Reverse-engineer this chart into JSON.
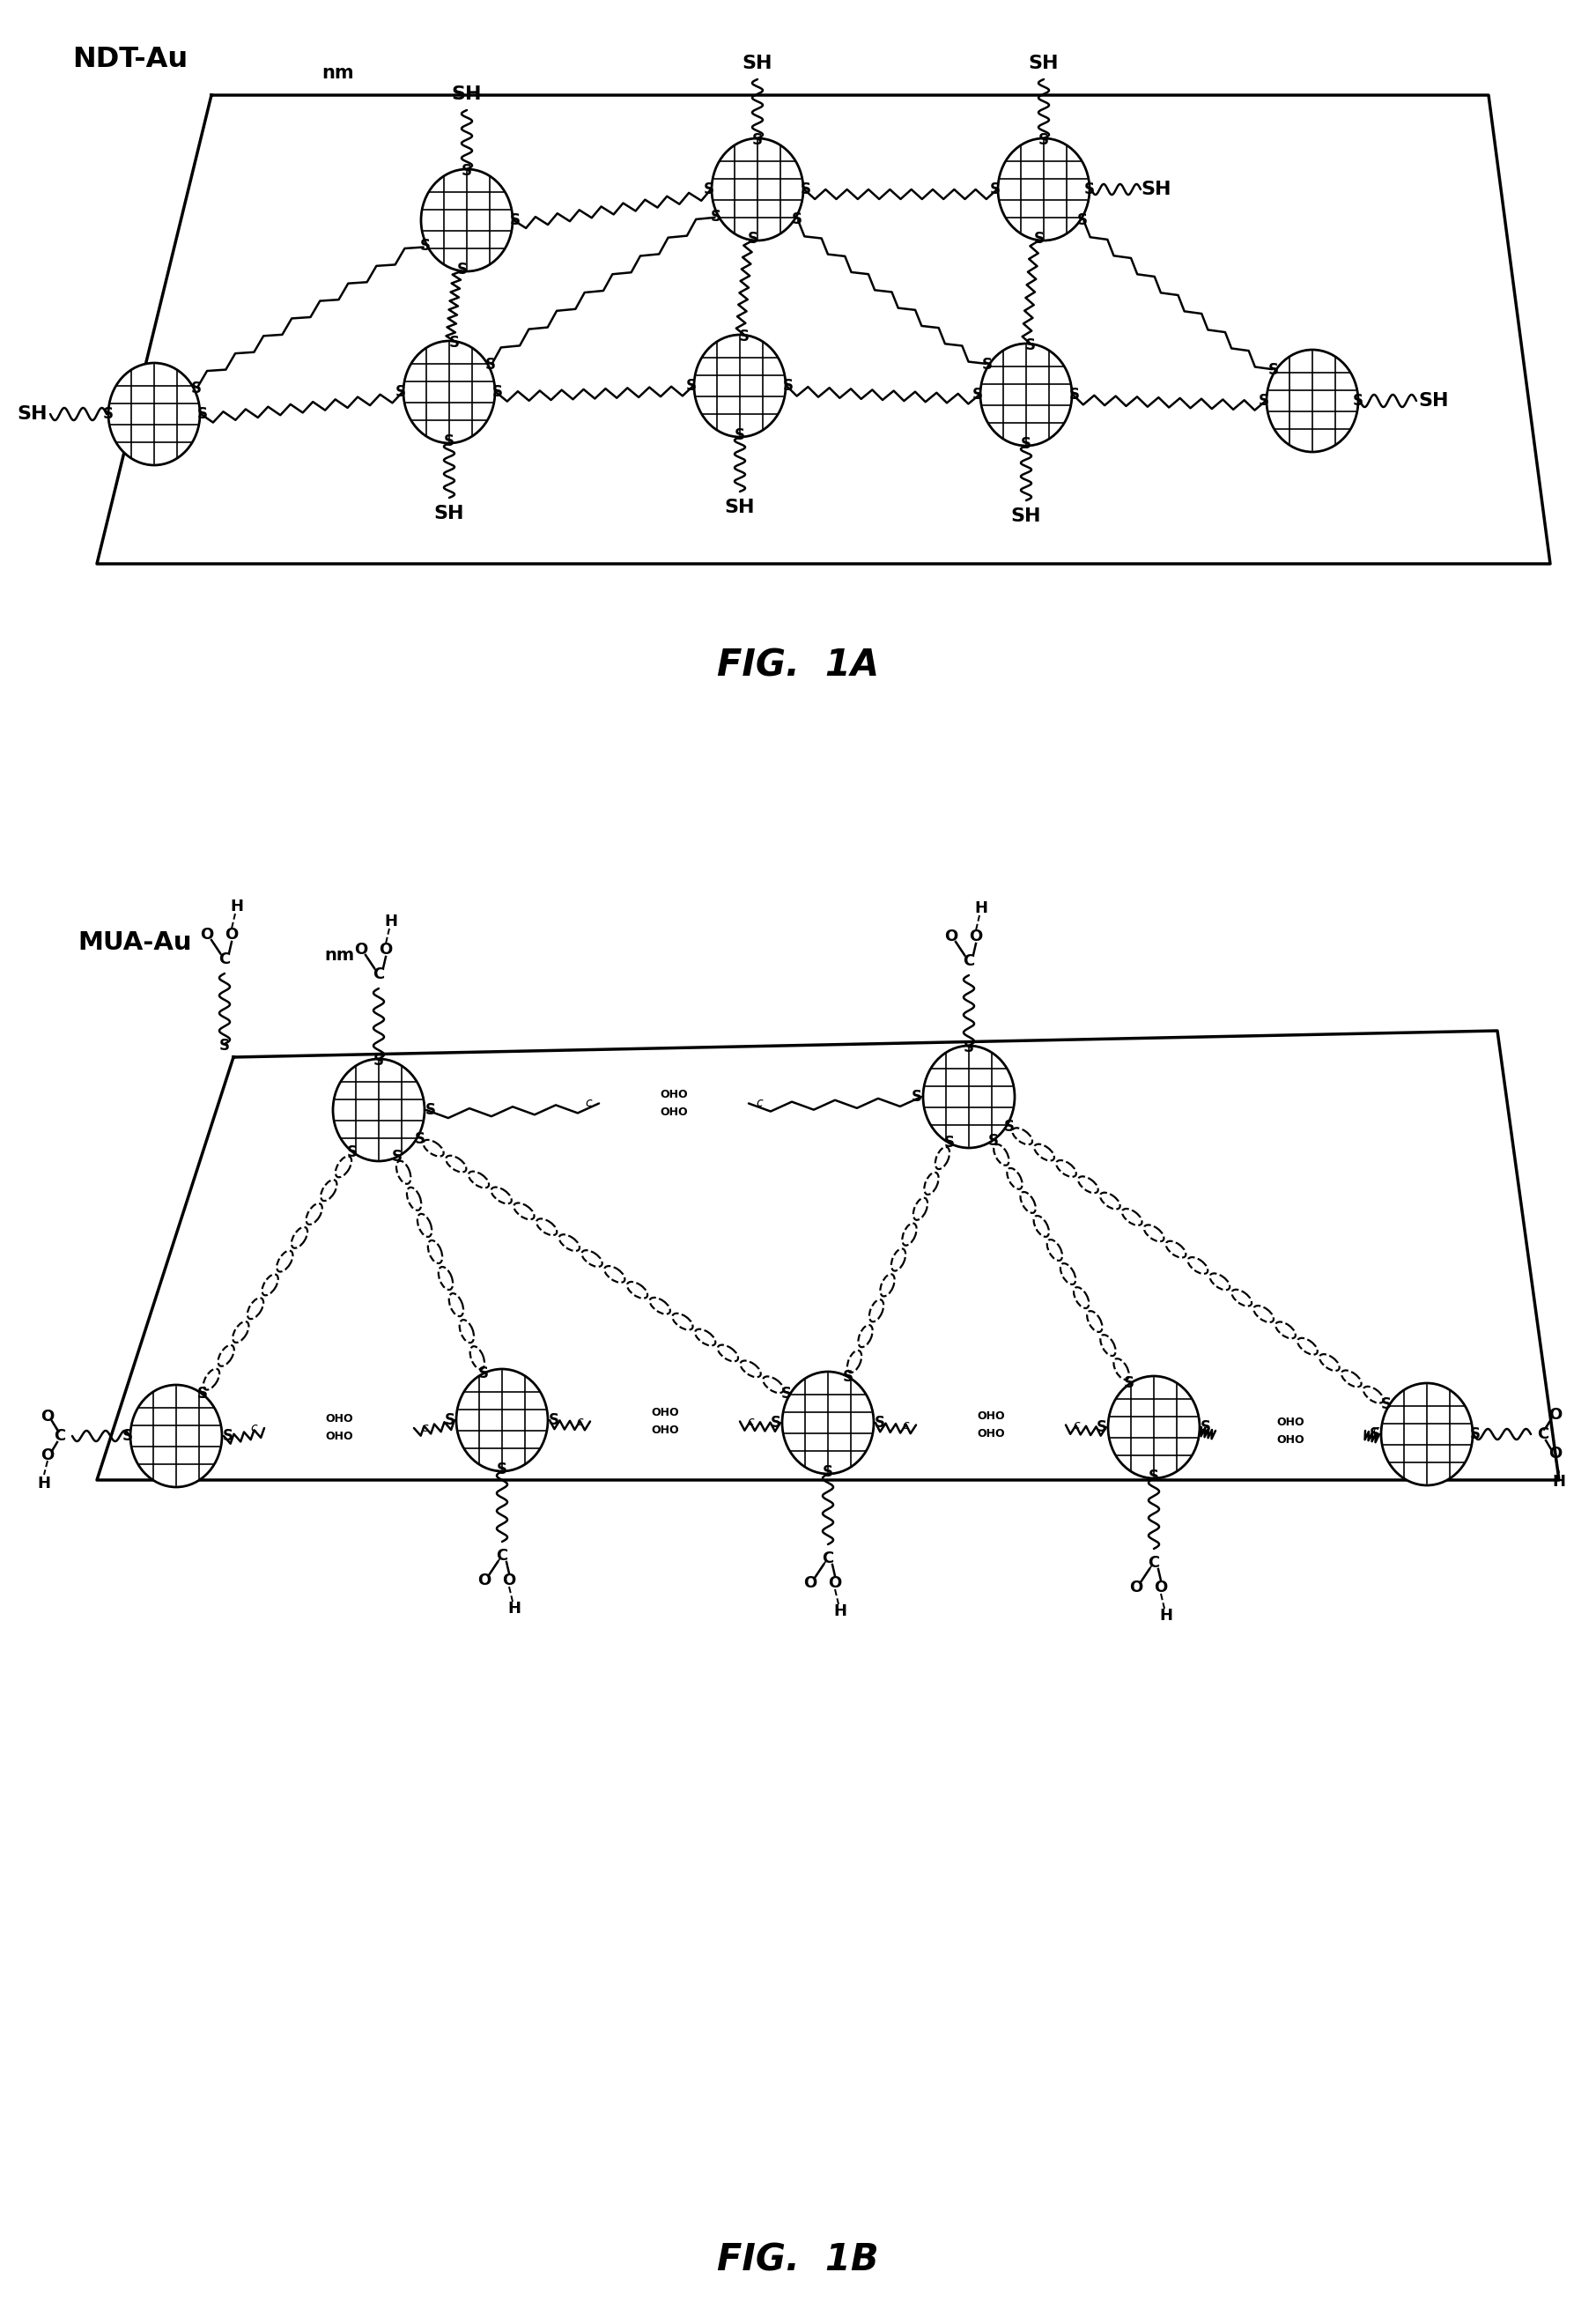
{
  "fig_width": 18.12,
  "fig_height": 26.38,
  "background_color": "#ffffff",
  "line_color": "#000000",
  "panel_A_label": "FIG.  1A",
  "panel_B_label": "FIG.  1B",
  "label_A_main": "NDT-Au",
  "label_A_sub": "nm",
  "label_B_main": "MUA-Au",
  "label_B_sub": "nm"
}
